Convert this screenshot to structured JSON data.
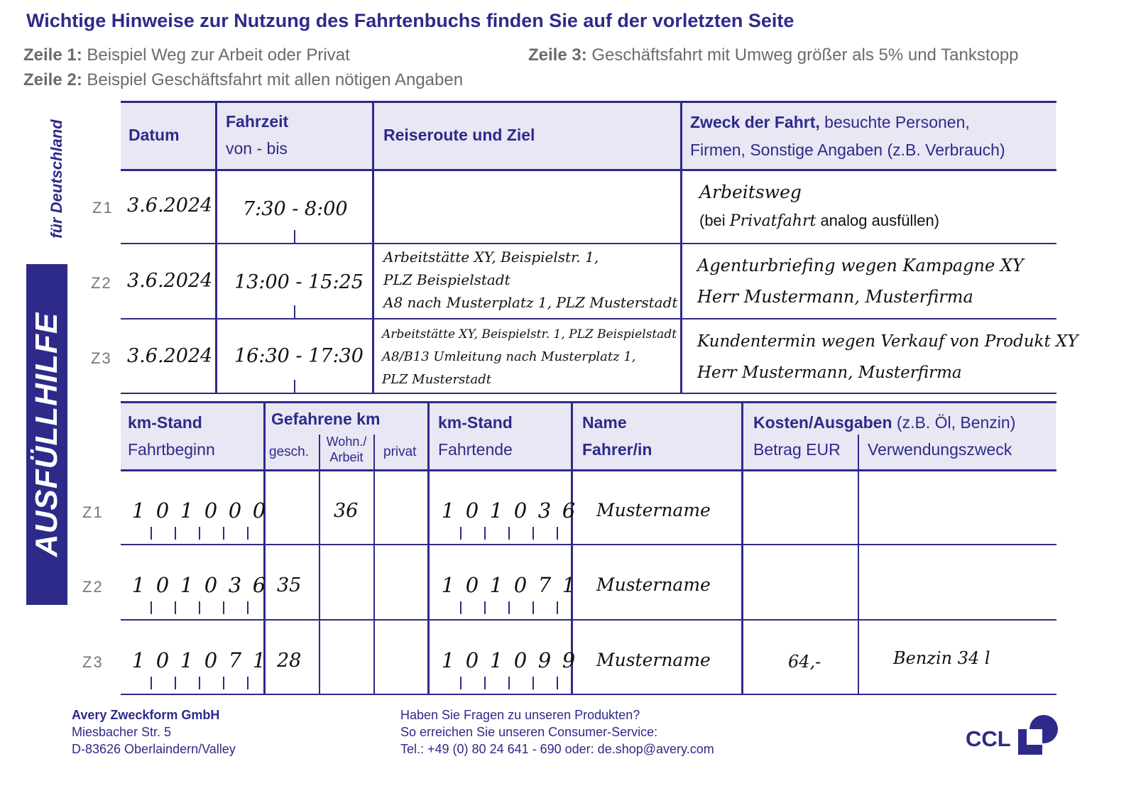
{
  "header": {
    "title": "Wichtige Hinweise zur Nutzung des Fahrtenbuchs finden Sie auf der vorletzten Seite",
    "notes": [
      {
        "label": "Zeile 1:",
        "text": " Beispiel Weg zur Arbeit oder Privat"
      },
      {
        "label": "Zeile 2:",
        "text": " Beispiel Geschäftsfahrt mit allen nötigen Angaben"
      },
      {
        "label": "Zeile 3:",
        "text": " Geschäftsfahrt mit Umweg größer als 5% und Tankstopp"
      }
    ]
  },
  "side": {
    "label": "AUSFÜLLHILFE",
    "sub": "für Deutschland"
  },
  "table1": {
    "headers": {
      "datum": "Datum",
      "fahrzeit": "Fahrzeit",
      "fahrzeit_sub": "von - bis",
      "route": "Reiseroute und Ziel",
      "zweck_bold": "Zweck der Fahrt,",
      "zweck_rest": " besuchte Personen,",
      "zweck_line2": "Firmen, Sonstige Angaben (z.B. Verbrauch)"
    },
    "rows": [
      {
        "label": "Z1",
        "datum": "3.6.2024",
        "zeit": "7:30 - 8:00",
        "route": [],
        "zweck": [
          "Arbeitsweg"
        ],
        "zweck_note_pre": "(bei ",
        "zweck_note_hw": "Privatfahrt",
        "zweck_note_post": " analog ausfüllen)"
      },
      {
        "label": "Z2",
        "datum": "3.6.2024",
        "zeit": "13:00 - 15:25",
        "route": [
          "Arbeitstätte XY, Beispielstr. 1,",
          "PLZ Beispielstadt",
          "A8 nach Musterplatz 1, PLZ Musterstadt"
        ],
        "zweck": [
          "Agenturbriefing wegen Kampagne XY",
          "Herr Mustermann, Musterfirma"
        ]
      },
      {
        "label": "Z3",
        "datum": "3.6.2024",
        "zeit": "16:30 - 17:30",
        "route": [
          "Arbeitstätte XY, Beispielstr. 1, PLZ Beispielstadt",
          "A8/B13 Umleitung nach Musterplatz 1,",
          "PLZ Musterstadt"
        ],
        "zweck": [
          "Kundentermin wegen Verkauf von Produkt XY",
          "Herr Mustermann, Musterfirma"
        ]
      }
    ]
  },
  "table2": {
    "headers": {
      "km_start": "km-Stand",
      "km_start_sub": "Fahrtbeginn",
      "gefahren": "Gefahrene km",
      "gesch": "gesch.",
      "wohn": "Wohn./",
      "arbeit": "Arbeit",
      "privat": "privat",
      "km_end": "km-Stand",
      "km_end_sub": "Fahrtende",
      "name": "Name",
      "name_sub": "Fahrer/in",
      "kosten_bold": "Kosten/Ausgaben",
      "kosten_rest": " (z.B. Öl, Benzin)",
      "betrag": "Betrag EUR",
      "zweck": "Verwendungszweck"
    },
    "rows": [
      {
        "label": "Z1",
        "km_start": "101000",
        "gesch": "",
        "wohn": "36",
        "privat": "",
        "km_end": "101036",
        "name": "Mustername",
        "betrag": "",
        "zweck": ""
      },
      {
        "label": "Z2",
        "km_start": "101036",
        "gesch": "35",
        "wohn": "",
        "privat": "",
        "km_end": "101071",
        "name": "Mustername",
        "betrag": "",
        "zweck": ""
      },
      {
        "label": "Z3",
        "km_start": "101071",
        "gesch": "28",
        "wohn": "",
        "privat": "",
        "km_end": "101099",
        "name": "Mustername",
        "betrag": "64,-",
        "zweck": "Benzin 34 l"
      }
    ]
  },
  "footer": {
    "company": "Avery Zweckform GmbH",
    "street": "Miesbacher Str. 5",
    "city": "D-83626 Oberlaindern/Valley",
    "q1": "Haben Sie Fragen zu unseren Produkten?",
    "q2": "So erreichen Sie unseren Consumer-Service:",
    "q3": "Tel.: +49 (0) 80 24 641 - 690 oder: de.shop@avery.com",
    "logo": "CCL"
  },
  "colors": {
    "brand": "#2e2a8a",
    "header_bg": "#e8e7f3"
  }
}
